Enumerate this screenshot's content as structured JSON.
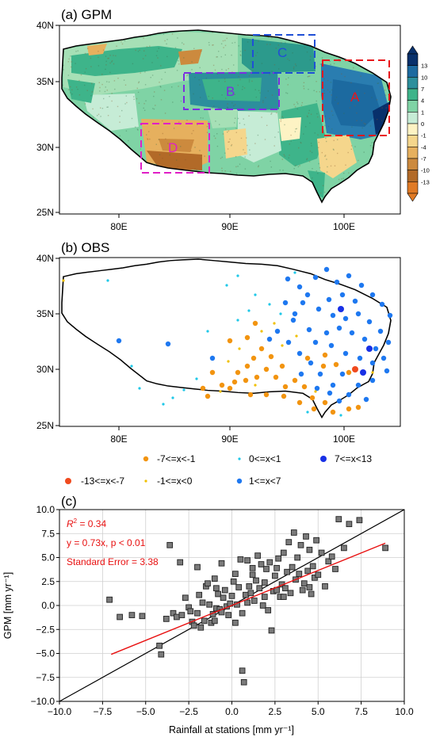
{
  "panel_a": {
    "title": "(a) GPM",
    "lat_ticks": [
      "40N",
      "35N",
      "30N",
      "25N"
    ],
    "lon_ticks": [
      "80E",
      "90E",
      "100E"
    ],
    "regions": [
      {
        "label": "A",
        "color": "#e8161b"
      },
      {
        "label": "B",
        "color": "#7b2ee0"
      },
      {
        "label": "C",
        "color": "#1f4fd6"
      },
      {
        "label": "D",
        "color": "#e01fc6"
      }
    ],
    "colorbar_labels": [
      "13",
      "10",
      "7",
      "4",
      "1",
      "0",
      "-1",
      "-4",
      "-7",
      "-10",
      "-13"
    ],
    "colorbar_colors": [
      "#08306b",
      "#1c6aa0",
      "#2c8f9c",
      "#3eb48a",
      "#7fd3a5",
      "#c6ecd6",
      "#fdf3c4",
      "#f5d68c",
      "#e6b05e",
      "#cc8a3e",
      "#b26a28",
      "#e07a25"
    ]
  },
  "panel_b": {
    "title": "(b) OBS",
    "lat_ticks": [
      "40N",
      "35N",
      "30N",
      "25N"
    ],
    "lon_ticks": [
      "80E",
      "90E",
      "100E"
    ],
    "legend": [
      {
        "label": "-13<=x<-7",
        "color": "#f04a1e",
        "size": 4
      },
      {
        "label": "-7<=x<-1",
        "color": "#f29410",
        "size": 3.2
      },
      {
        "label": "-1<=x<0",
        "color": "#f0c000",
        "size": 1.6
      },
      {
        "label": "0<=x<1",
        "color": "#1fc8e8",
        "size": 1.6
      },
      {
        "label": "1<=x<7",
        "color": "#1e78f0",
        "size": 3.2
      },
      {
        "label": "7<=x<13",
        "color": "#1830e6",
        "size": 4
      }
    ]
  },
  "chart_data": {
    "type": "scatter",
    "panel_label": "(c)",
    "xlabel": "Rainfall at stations [mm yr⁻¹]",
    "ylabel": "GPM [mm yr⁻¹]",
    "xlim": [
      -10,
      10
    ],
    "ylim": [
      -10,
      10
    ],
    "x_ticks": [
      -10.0,
      -7.5,
      -5.0,
      -2.5,
      0.0,
      2.5,
      5.0,
      7.5,
      10.0
    ],
    "y_ticks": [
      -10.0,
      -7.5,
      -5.0,
      -2.5,
      0.0,
      2.5,
      5.0,
      7.5,
      10.0
    ],
    "x_tick_labels": [
      "−10.0",
      "−7.5",
      "−5.0",
      "−2.5",
      "0.0",
      "2.5",
      "5.0",
      "7.5",
      "10.0"
    ],
    "y_tick_labels": [
      "−10.0",
      "−7.5",
      "−5.0",
      "−2.5",
      "0.0",
      "2.5",
      "5.0",
      "7.5",
      "10.0"
    ],
    "grid": true,
    "annotations": {
      "r2_symbol": "R",
      "r2_sup": "2",
      "r2_value": " = 0.34",
      "equation": "y = 0.73x, p < 0.01",
      "stderr": "Standard Error = 3.38"
    },
    "fit_line": {
      "slope": 0.73,
      "x_range": [
        -7.0,
        8.9
      ],
      "y_range": [
        -5.1,
        6.5
      ],
      "color": "#e81010"
    },
    "identity_line": {
      "x_range": [
        -10,
        10
      ],
      "color": "#000000"
    },
    "points": [
      [
        -7.1,
        0.6
      ],
      [
        -6.5,
        -1.2
      ],
      [
        -5.8,
        -1.0
      ],
      [
        -5.2,
        -1.1
      ],
      [
        -4.2,
        -4.2
      ],
      [
        -4.1,
        -5.1
      ],
      [
        -3.8,
        -1.4
      ],
      [
        -3.6,
        6.3
      ],
      [
        -3.4,
        -0.8
      ],
      [
        -3.2,
        -1.2
      ],
      [
        -3.0,
        4.5
      ],
      [
        -2.9,
        -1.0
      ],
      [
        -2.7,
        0.8
      ],
      [
        -2.5,
        -0.2
      ],
      [
        -2.4,
        -0.6
      ],
      [
        -2.3,
        -1.7
      ],
      [
        -2.2,
        -2.1
      ],
      [
        -2.0,
        -0.8
      ],
      [
        -1.9,
        1.1
      ],
      [
        -1.8,
        -2.3
      ],
      [
        -1.7,
        0.3
      ],
      [
        -1.6,
        -1.6
      ],
      [
        -1.5,
        2.0
      ],
      [
        -1.4,
        2.3
      ],
      [
        -1.3,
        0.1
      ],
      [
        -1.2,
        -1.8
      ],
      [
        -1.1,
        -0.9
      ],
      [
        -1.0,
        -1.6
      ],
      [
        -0.9,
        -0.3
      ],
      [
        -0.8,
        1.2
      ],
      [
        -0.7,
        -0.4
      ],
      [
        -0.6,
        -0.7
      ],
      [
        -0.5,
        0.8
      ],
      [
        -0.4,
        1.6
      ],
      [
        -0.3,
        -0.1
      ],
      [
        -0.2,
        -1.0
      ],
      [
        -0.1,
        0.2
      ],
      [
        0.0,
        1.0
      ],
      [
        0.1,
        2.5
      ],
      [
        0.2,
        3.3
      ],
      [
        0.3,
        0.1
      ],
      [
        0.4,
        1.9
      ],
      [
        0.5,
        4.8
      ],
      [
        0.6,
        -0.8
      ],
      [
        0.6,
        -6.8
      ],
      [
        0.7,
        -8.0
      ],
      [
        0.8,
        1.1
      ],
      [
        0.9,
        4.7
      ],
      [
        1.0,
        2.0
      ],
      [
        1.1,
        1.3
      ],
      [
        1.2,
        3.2
      ],
      [
        1.3,
        0.5
      ],
      [
        1.4,
        2.6
      ],
      [
        1.5,
        5.2
      ],
      [
        1.6,
        1.8
      ],
      [
        1.7,
        4.3
      ],
      [
        1.8,
        0.0
      ],
      [
        1.9,
        2.4
      ],
      [
        2.0,
        3.8
      ],
      [
        2.1,
        -0.5
      ],
      [
        2.2,
        4.5
      ],
      [
        2.3,
        -2.6
      ],
      [
        2.4,
        1.5
      ],
      [
        2.5,
        3.1
      ],
      [
        2.6,
        1.6
      ],
      [
        2.7,
        4.9
      ],
      [
        2.8,
        0.9
      ],
      [
        2.9,
        2.2
      ],
      [
        3.0,
        5.5
      ],
      [
        3.1,
        1.8
      ],
      [
        3.2,
        3.5
      ],
      [
        3.3,
        6.6
      ],
      [
        3.4,
        1.3
      ],
      [
        3.5,
        4.0
      ],
      [
        3.6,
        7.6
      ],
      [
        3.7,
        2.7
      ],
      [
        3.8,
        5.0
      ],
      [
        3.9,
        3.3
      ],
      [
        4.0,
        6.3
      ],
      [
        4.1,
        1.6
      ],
      [
        4.2,
        2.3
      ],
      [
        4.3,
        7.2
      ],
      [
        4.4,
        3.6
      ],
      [
        4.5,
        5.8
      ],
      [
        4.6,
        1.2
      ],
      [
        4.7,
        4.1
      ],
      [
        4.8,
        2.9
      ],
      [
        4.9,
        6.8
      ],
      [
        5.0,
        3.2
      ],
      [
        5.2,
        5.5
      ],
      [
        5.4,
        2.0
      ],
      [
        5.6,
        4.6
      ],
      [
        5.8,
        5.1
      ],
      [
        6.0,
        3.8
      ],
      [
        6.2,
        9.0
      ],
      [
        6.5,
        6.0
      ],
      [
        6.8,
        8.5
      ],
      [
        7.4,
        8.9
      ],
      [
        8.9,
        6.0
      ],
      [
        -0.6,
        4.4
      ],
      [
        0.9,
        0.3
      ],
      [
        1.9,
        0.9
      ],
      [
        -1.0,
        2.8
      ],
      [
        2.6,
        3.9
      ],
      [
        4.5,
        1.9
      ],
      [
        3.0,
        0.9
      ],
      [
        -2.0,
        4.0
      ],
      [
        1.2,
        3.9
      ],
      [
        0.2,
        -1.8
      ],
      [
        -0.9,
        1.8
      ]
    ]
  }
}
